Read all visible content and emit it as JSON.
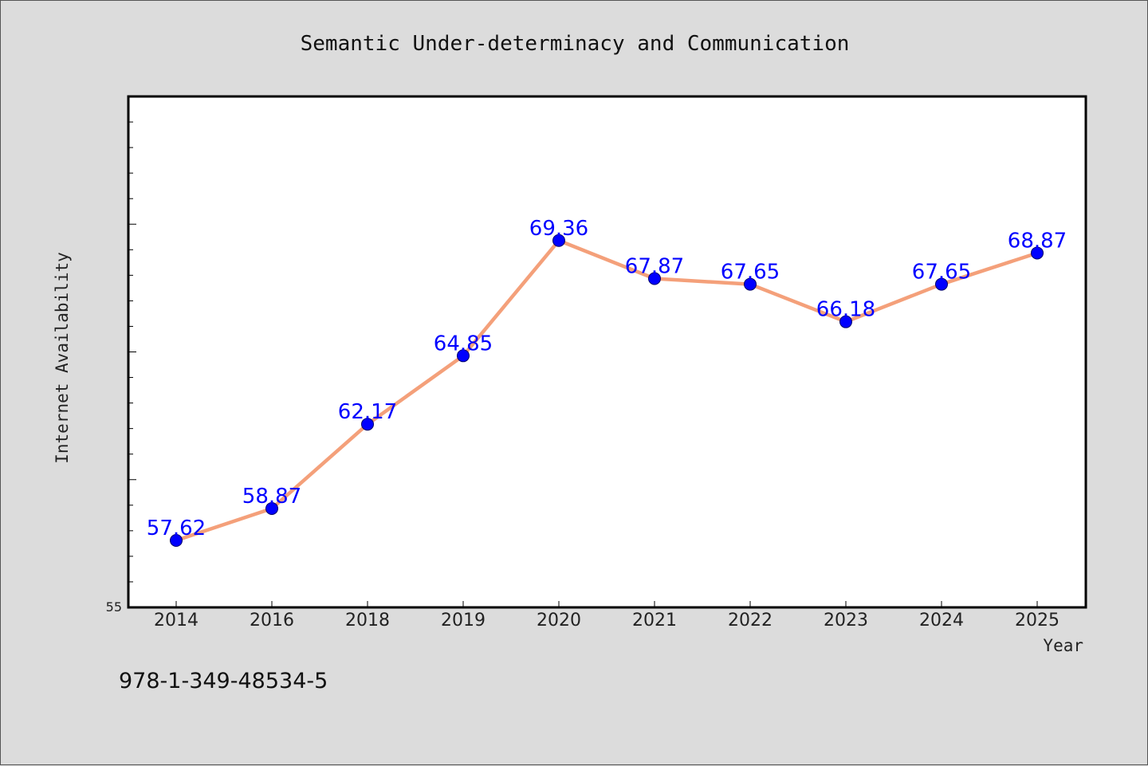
{
  "chart_data": {
    "type": "line",
    "title": "Semantic Under-determinacy and Communication",
    "xlabel": "Year",
    "ylabel": "Internet Availability",
    "categories": [
      "2014",
      "2016",
      "2018",
      "2019",
      "2020",
      "2021",
      "2022",
      "2023",
      "2024",
      "2025"
    ],
    "series": [
      {
        "values": [
          57.62,
          58.87,
          62.17,
          64.85,
          69.36,
          67.87,
          67.65,
          66.18,
          67.65,
          68.87
        ],
        "labels": [
          "57.62",
          "58.87",
          "62.17",
          "64.85",
          "69.36",
          "67.87",
          "67.65",
          "66.18",
          "67.65",
          "68.87"
        ],
        "line_color": "#f4a07a",
        "marker_color": "#0000ff"
      }
    ],
    "ylim": [
      55,
      75
    ],
    "y_tick_labels": [
      "55"
    ],
    "grid": false,
    "legend": "none"
  },
  "footnote": "978-1-349-48534-5",
  "colors": {
    "background": "#dcdcdc",
    "plot_background": "#ffffff",
    "line": "#f4a07a",
    "marker": "#0000ff",
    "data_label": "#0000ff"
  }
}
